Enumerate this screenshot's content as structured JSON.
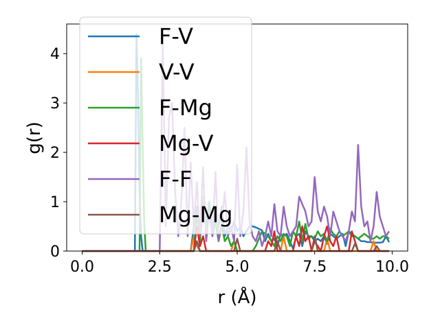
{
  "chart_data": {
    "type": "line",
    "xlabel": "r (Å)",
    "ylabel": "g(r)",
    "xlim": [
      -0.5,
      10.5
    ],
    "ylim": [
      0,
      4.6
    ],
    "xticks": [
      0.0,
      2.5,
      5.0,
      7.5,
      10.0
    ],
    "xtick_labels": [
      "0.0",
      "2.5",
      "5.0",
      "7.5",
      "10.0"
    ],
    "yticks": [
      0,
      1,
      2,
      3,
      4
    ],
    "ytick_labels": [
      "0",
      "1",
      "2",
      "3",
      "4"
    ],
    "grid": false,
    "legend_position": "upper-left",
    "series": [
      {
        "name": "F-V",
        "color": "#1f77b4",
        "points": [
          [
            0,
            0
          ],
          [
            1.7,
            0
          ],
          [
            1.75,
            4.4
          ],
          [
            1.8,
            3.2
          ],
          [
            1.85,
            1.2
          ],
          [
            1.9,
            0.3
          ],
          [
            1.95,
            0
          ],
          [
            3.5,
            0
          ],
          [
            3.6,
            0.5
          ],
          [
            3.7,
            0.9
          ],
          [
            3.8,
            0.3
          ],
          [
            3.9,
            0.8
          ],
          [
            4.0,
            0.6
          ],
          [
            4.1,
            1.0
          ],
          [
            4.2,
            0.4
          ],
          [
            4.3,
            0.8
          ],
          [
            4.4,
            0.5
          ],
          [
            4.5,
            0.9
          ],
          [
            4.6,
            0.3
          ],
          [
            4.7,
            0.5
          ],
          [
            4.8,
            0.4
          ],
          [
            4.9,
            0.6
          ],
          [
            5.0,
            0.4
          ],
          [
            5.1,
            0.5
          ],
          [
            5.2,
            0.3
          ],
          [
            5.3,
            0.4
          ],
          [
            5.4,
            0.5
          ],
          [
            5.5,
            0.5
          ],
          [
            5.6,
            0.48
          ],
          [
            5.7,
            0.45
          ],
          [
            5.8,
            0.42
          ],
          [
            5.9,
            0.2
          ],
          [
            6.0,
            0.35
          ],
          [
            6.1,
            0.2
          ],
          [
            6.2,
            0.25
          ],
          [
            6.3,
            0.1
          ],
          [
            6.4,
            0.35
          ],
          [
            6.5,
            0.3
          ],
          [
            6.6,
            0.35
          ],
          [
            6.7,
            0.2
          ],
          [
            6.8,
            0.05
          ],
          [
            6.9,
            0.3
          ],
          [
            7.0,
            0.35
          ],
          [
            7.1,
            0.1
          ],
          [
            7.2,
            0.4
          ],
          [
            7.3,
            0.3
          ],
          [
            7.4,
            0.3
          ],
          [
            7.5,
            0.2
          ],
          [
            7.6,
            0.25
          ],
          [
            7.7,
            0.2
          ],
          [
            7.8,
            0.3
          ],
          [
            7.9,
            0.15
          ],
          [
            8.0,
            0.35
          ],
          [
            8.1,
            0.3
          ],
          [
            8.2,
            0.25
          ],
          [
            8.3,
            0.3
          ],
          [
            8.4,
            0.35
          ],
          [
            8.5,
            0.1
          ],
          [
            8.6,
            0.4
          ],
          [
            8.7,
            0.35
          ],
          [
            8.8,
            0.3
          ],
          [
            8.9,
            0.25
          ],
          [
            9.0,
            0.2
          ],
          [
            9.1,
            0.2
          ],
          [
            9.2,
            0.18
          ],
          [
            9.3,
            0.18
          ],
          [
            9.4,
            0.17
          ],
          [
            9.5,
            0.17
          ],
          [
            9.6,
            0.17
          ],
          [
            9.7,
            0.18
          ],
          [
            9.8,
            0.3
          ],
          [
            9.9,
            0.18
          ]
        ]
      },
      {
        "name": "V-V",
        "color": "#ff7f0e",
        "points": [
          [
            0,
            0
          ],
          [
            3.5,
            0
          ],
          [
            3.6,
            0.3
          ],
          [
            3.7,
            0.1
          ],
          [
            3.8,
            0
          ],
          [
            4.8,
            0
          ],
          [
            4.9,
            0.2
          ],
          [
            5.0,
            0
          ],
          [
            6.4,
            0
          ],
          [
            6.5,
            0.3
          ],
          [
            6.6,
            0
          ],
          [
            7.8,
            0
          ],
          [
            7.9,
            0.25
          ],
          [
            8.0,
            0
          ],
          [
            9.3,
            0
          ],
          [
            9.4,
            0.2
          ],
          [
            9.5,
            0
          ],
          [
            9.9,
            0
          ]
        ]
      },
      {
        "name": "F-Mg",
        "color": "#2ca02c",
        "points": [
          [
            0,
            0
          ],
          [
            1.85,
            0
          ],
          [
            1.9,
            3.9
          ],
          [
            1.95,
            2.2
          ],
          [
            2.0,
            0.6
          ],
          [
            2.05,
            0
          ],
          [
            3.6,
            0
          ],
          [
            3.7,
            0.8
          ],
          [
            3.8,
            0.2
          ],
          [
            3.9,
            1.1
          ],
          [
            4.0,
            0.5
          ],
          [
            4.1,
            0.9
          ],
          [
            4.2,
            0.3
          ],
          [
            4.3,
            0.6
          ],
          [
            4.4,
            0.2
          ],
          [
            4.5,
            0.5
          ],
          [
            4.6,
            0.2
          ],
          [
            4.7,
            0.3
          ],
          [
            4.8,
            0.1
          ],
          [
            4.9,
            0.2
          ],
          [
            5.0,
            0
          ],
          [
            5.5,
            0
          ],
          [
            5.6,
            0.1
          ],
          [
            5.8,
            0.4
          ],
          [
            5.9,
            0.35
          ],
          [
            6.0,
            0.3
          ],
          [
            6.1,
            0.2
          ],
          [
            6.2,
            0.1
          ],
          [
            6.3,
            0.3
          ],
          [
            6.4,
            0.2
          ],
          [
            6.5,
            0.35
          ],
          [
            6.6,
            0.3
          ],
          [
            6.7,
            0.1
          ],
          [
            6.8,
            0.4
          ],
          [
            6.9,
            0.3
          ],
          [
            7.0,
            0.6
          ],
          [
            7.1,
            0.2
          ],
          [
            7.2,
            0.55
          ],
          [
            7.3,
            0.25
          ],
          [
            7.4,
            0.3
          ],
          [
            7.5,
            0.25
          ],
          [
            7.6,
            0.4
          ],
          [
            7.7,
            0.3
          ],
          [
            7.8,
            0.35
          ],
          [
            7.9,
            0.2
          ],
          [
            8.0,
            0.45
          ],
          [
            8.1,
            0.35
          ],
          [
            8.2,
            0.3
          ],
          [
            8.3,
            0.4
          ],
          [
            8.4,
            0.3
          ],
          [
            8.5,
            0.35
          ],
          [
            8.6,
            0.4
          ],
          [
            8.7,
            0.3
          ],
          [
            8.8,
            0.3
          ],
          [
            8.9,
            0.25
          ],
          [
            9.0,
            0.3
          ],
          [
            9.1,
            0.35
          ],
          [
            9.2,
            0.3
          ],
          [
            9.3,
            0.25
          ],
          [
            9.4,
            0.25
          ],
          [
            9.5,
            0.3
          ],
          [
            9.6,
            0.25
          ],
          [
            9.7,
            0.3
          ],
          [
            9.8,
            0.3
          ],
          [
            9.9,
            0.25
          ]
        ]
      },
      {
        "name": "Mg-V",
        "color": "#d62728",
        "points": [
          [
            0,
            0
          ],
          [
            3.6,
            0
          ],
          [
            3.7,
            0.5
          ],
          [
            3.8,
            0.1
          ],
          [
            3.9,
            0.3
          ],
          [
            4.0,
            0
          ],
          [
            5.9,
            0
          ],
          [
            6.0,
            0.2
          ],
          [
            6.1,
            0.1
          ],
          [
            6.2,
            0.4
          ],
          [
            6.3,
            0
          ],
          [
            6.8,
            0
          ],
          [
            6.9,
            0.3
          ],
          [
            7.0,
            0.1
          ],
          [
            7.1,
            0.5
          ],
          [
            7.2,
            0.2
          ],
          [
            7.3,
            0.3
          ],
          [
            7.4,
            0
          ],
          [
            7.5,
            0.2
          ],
          [
            7.6,
            0.1
          ],
          [
            7.7,
            0
          ],
          [
            7.8,
            0.3
          ],
          [
            7.9,
            0.5
          ],
          [
            8.0,
            0.2
          ],
          [
            8.1,
            0.1
          ],
          [
            8.2,
            0.3
          ],
          [
            8.3,
            0
          ],
          [
            8.6,
            0
          ],
          [
            8.7,
            0.4
          ],
          [
            8.8,
            0.2
          ],
          [
            8.9,
            0
          ],
          [
            9.9,
            0
          ]
        ]
      },
      {
        "name": "F-F",
        "color": "#9467bd",
        "points": [
          [
            0,
            0
          ],
          [
            2.5,
            0
          ],
          [
            2.6,
            4.2
          ],
          [
            2.7,
            0.5
          ],
          [
            2.8,
            2.7
          ],
          [
            2.9,
            3.0
          ],
          [
            3.0,
            1.2
          ],
          [
            3.1,
            0.3
          ],
          [
            3.2,
            1.0
          ],
          [
            3.3,
            2.5
          ],
          [
            3.4,
            0.3
          ],
          [
            3.5,
            1.8
          ],
          [
            3.6,
            0.5
          ],
          [
            3.7,
            1.4
          ],
          [
            3.8,
            0.3
          ],
          [
            3.9,
            1.7
          ],
          [
            4.0,
            0.2
          ],
          [
            4.1,
            0.8
          ],
          [
            4.2,
            0.3
          ],
          [
            4.3,
            1.6
          ],
          [
            4.4,
            0.2
          ],
          [
            4.5,
            0.6
          ],
          [
            4.6,
            1.2
          ],
          [
            4.7,
            0.3
          ],
          [
            4.8,
            0.5
          ],
          [
            4.9,
            0.2
          ],
          [
            5.0,
            1.75
          ],
          [
            5.1,
            0.3
          ],
          [
            5.2,
            0.8
          ],
          [
            5.3,
            2.1
          ],
          [
            5.4,
            0.6
          ],
          [
            5.5,
            0.3
          ],
          [
            5.6,
            0.2
          ],
          [
            5.7,
            0.4
          ],
          [
            5.8,
            0.1
          ],
          [
            5.9,
            0.3
          ],
          [
            6.0,
            0.6
          ],
          [
            6.1,
            0.3
          ],
          [
            6.2,
            0.95
          ],
          [
            6.3,
            0.4
          ],
          [
            6.4,
            0.3
          ],
          [
            6.5,
            0.9
          ],
          [
            6.6,
            0.5
          ],
          [
            6.7,
            0.3
          ],
          [
            6.8,
            0.4
          ],
          [
            6.9,
            0.5
          ],
          [
            7.0,
            1.1
          ],
          [
            7.1,
            0.95
          ],
          [
            7.2,
            0.8
          ],
          [
            7.3,
            0.5
          ],
          [
            7.4,
            0.6
          ],
          [
            7.5,
            1.5
          ],
          [
            7.6,
            0.8
          ],
          [
            7.7,
            0.6
          ],
          [
            7.8,
            0.9
          ],
          [
            7.9,
            0.7
          ],
          [
            8.0,
            0.3
          ],
          [
            8.1,
            0.8
          ],
          [
            8.2,
            0.6
          ],
          [
            8.3,
            0.4
          ],
          [
            8.4,
            0.3
          ],
          [
            8.5,
            0.2
          ],
          [
            8.6,
            0.4
          ],
          [
            8.7,
            0.8
          ],
          [
            8.8,
            0.6
          ],
          [
            8.9,
            2.15
          ],
          [
            9.0,
            0.9
          ],
          [
            9.1,
            0.5
          ],
          [
            9.2,
            0.6
          ],
          [
            9.3,
            0.2
          ],
          [
            9.4,
            0.5
          ],
          [
            9.5,
            1.2
          ],
          [
            9.6,
            0.7
          ],
          [
            9.7,
            0.5
          ],
          [
            9.8,
            0.3
          ],
          [
            9.9,
            0.4
          ]
        ]
      },
      {
        "name": "Mg-Mg",
        "color": "#8c564b",
        "points": [
          [
            0,
            0
          ],
          [
            3.6,
            0
          ],
          [
            3.7,
            0.2
          ],
          [
            3.8,
            0
          ],
          [
            4.9,
            0
          ],
          [
            5.0,
            0.25
          ],
          [
            5.1,
            0
          ],
          [
            6.2,
            0
          ],
          [
            6.3,
            0.2
          ],
          [
            6.4,
            0
          ],
          [
            7.4,
            0
          ],
          [
            7.5,
            0.3
          ],
          [
            7.6,
            0
          ],
          [
            8.7,
            0
          ],
          [
            8.8,
            0.15
          ],
          [
            8.9,
            0
          ],
          [
            9.4,
            0
          ],
          [
            9.5,
            0.1
          ],
          [
            9.6,
            0
          ],
          [
            9.9,
            0
          ]
        ]
      }
    ]
  }
}
